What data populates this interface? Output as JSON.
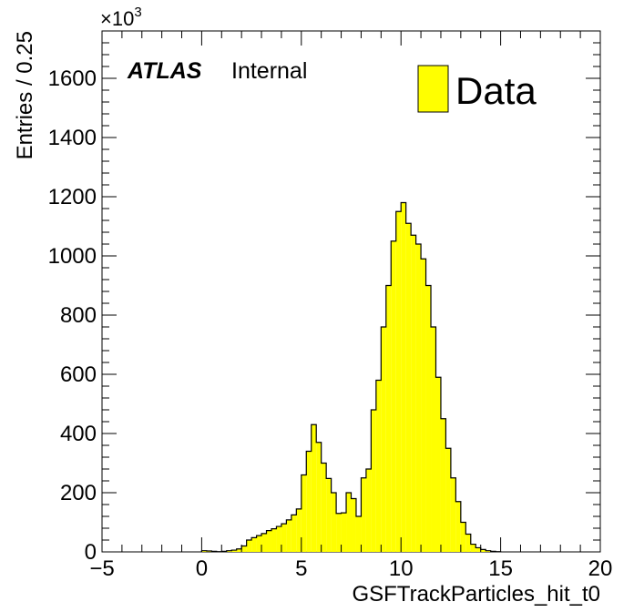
{
  "chart_data": {
    "type": "bar",
    "title": "",
    "xlabel": "GSFTrackParticles_hit_t0",
    "ylabel": "Entries / 0.25",
    "y_multiplier": "×10",
    "y_multiplier_exp": "3",
    "xlim": [
      -5,
      20
    ],
    "ylim": [
      0,
      1760
    ],
    "x_ticks": [
      "−5",
      "0",
      "5",
      "10",
      "15",
      "20"
    ],
    "y_ticks": [
      "0",
      "200",
      "400",
      "600",
      "800",
      "1000",
      "1200",
      "1400",
      "1600"
    ],
    "bin_width": 0.25,
    "x_start": 0,
    "fill_color": "#ffff00",
    "line_color": "#000000",
    "legend_position": "top-right",
    "legend": [
      {
        "label": "Data",
        "color": "#ffff00"
      }
    ],
    "annotation": {
      "bold": "ATLAS",
      "normal": "Internal"
    },
    "series": [
      {
        "name": "Data",
        "values": [
          4,
          3,
          2,
          1,
          2,
          4,
          6,
          10,
          20,
          40,
          48,
          55,
          62,
          72,
          78,
          86,
          95,
          108,
          125,
          145,
          260,
          340,
          430,
          370,
          300,
          248,
          200,
          130,
          132,
          200,
          180,
          120,
          250,
          280,
          480,
          580,
          760,
          900,
          1050,
          1150,
          1180,
          1110,
          1070,
          1040,
          990,
          900,
          760,
          590,
          450,
          350,
          250,
          170,
          100,
          60,
          26,
          14,
          8,
          4,
          2,
          1
        ]
      }
    ]
  }
}
